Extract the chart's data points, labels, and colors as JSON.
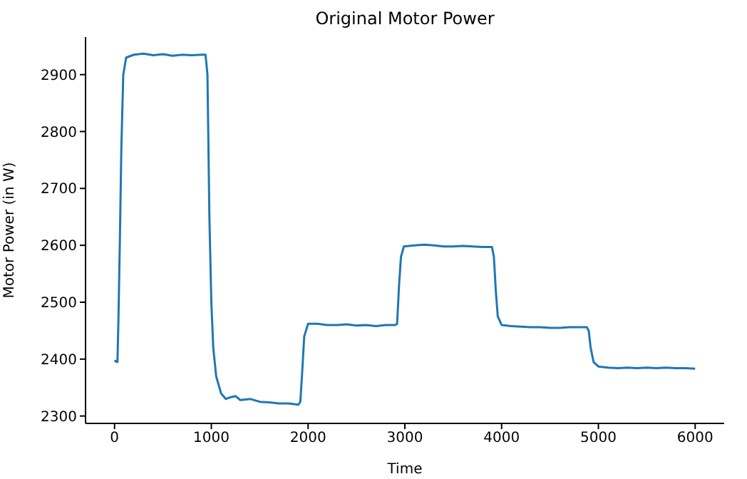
{
  "chart_data": {
    "type": "line",
    "title": "Original Motor Power",
    "xlabel": "Time",
    "ylabel": "Motor Power (in W)",
    "x": [
      0,
      20,
      30,
      40,
      55,
      70,
      90,
      120,
      200,
      300,
      400,
      500,
      600,
      700,
      800,
      900,
      940,
      960,
      980,
      1000,
      1020,
      1050,
      1100,
      1150,
      1200,
      1250,
      1300,
      1400,
      1500,
      1600,
      1700,
      1800,
      1900,
      1920,
      1940,
      1960,
      2000,
      2100,
      2200,
      2300,
      2400,
      2500,
      2600,
      2700,
      2800,
      2900,
      2920,
      2940,
      2960,
      2990,
      3100,
      3200,
      3300,
      3400,
      3500,
      3600,
      3700,
      3800,
      3900,
      3920,
      3940,
      3960,
      4000,
      4100,
      4200,
      4300,
      4400,
      4500,
      4600,
      4700,
      4800,
      4880,
      4900,
      4920,
      4950,
      5000,
      5100,
      5200,
      5300,
      5400,
      5500,
      5600,
      5700,
      5800,
      5900,
      6000
    ],
    "series": [
      {
        "color": "#1f77b4",
        "values": [
          2398,
          2395,
          2395,
          2470,
          2610,
          2770,
          2900,
          2930,
          2935,
          2937,
          2934,
          2936,
          2933,
          2935,
          2934,
          2935,
          2935,
          2900,
          2650,
          2500,
          2420,
          2370,
          2340,
          2330,
          2333,
          2335,
          2328,
          2330,
          2325,
          2324,
          2322,
          2322,
          2320,
          2325,
          2380,
          2440,
          2462,
          2462,
          2460,
          2460,
          2461,
          2459,
          2460,
          2458,
          2460,
          2460,
          2462,
          2530,
          2580,
          2598,
          2600,
          2601,
          2600,
          2598,
          2598,
          2599,
          2598,
          2597,
          2597,
          2580,
          2520,
          2475,
          2460,
          2458,
          2457,
          2456,
          2456,
          2455,
          2455,
          2456,
          2456,
          2456,
          2450,
          2420,
          2395,
          2387,
          2385,
          2384,
          2385,
          2384,
          2385,
          2384,
          2385,
          2384,
          2384,
          2383
        ]
      }
    ],
    "xlim": [
      -300,
      6300
    ],
    "xticks": [
      0,
      1000,
      2000,
      3000,
      4000,
      5000,
      6000
    ],
    "ylim": [
      2287,
      2966
    ],
    "yticks": [
      2300,
      2400,
      2500,
      2600,
      2700,
      2800,
      2900
    ],
    "grid": false,
    "legend": false,
    "marker": "none",
    "line_style": "solid"
  }
}
